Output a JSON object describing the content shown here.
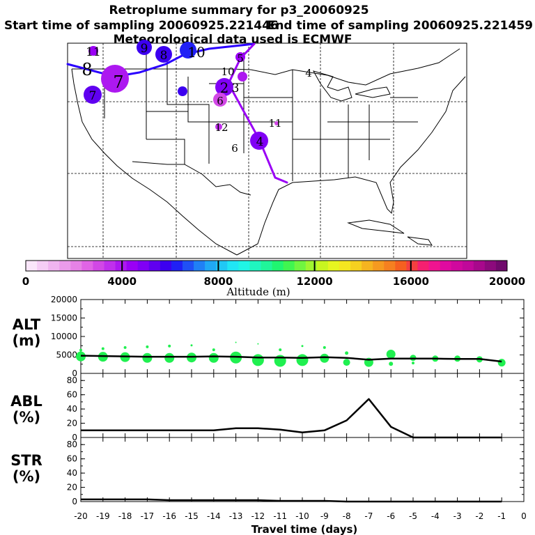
{
  "header": {
    "title": "Retroplume summary for p3_20060925",
    "start_label": "Start time of sampling 20060925.221446",
    "end_label": "End time of sampling 20060925.221459",
    "met_label": "Meteorological data used is ECMWF"
  },
  "colorbar": {
    "label": "Altitude (m)",
    "tick_labels": [
      "0",
      "4000",
      "8000",
      "12000",
      "16000",
      "20000"
    ],
    "min": 0,
    "max": 20000,
    "colors": [
      "#fae6fa",
      "#f5cdf5",
      "#f0b4f0",
      "#eb9beb",
      "#e682e6",
      "#e064e6",
      "#d248e6",
      "#c030ec",
      "#ad18f0",
      "#9a00f5",
      "#8000f5",
      "#6000f0",
      "#3c00f0",
      "#2020f5",
      "#2050f5",
      "#2080f5",
      "#20a8f5",
      "#20c8f5",
      "#20e6f5",
      "#20f5e6",
      "#20f5c0",
      "#20f59a",
      "#20f570",
      "#40f550",
      "#70f540",
      "#a0f530",
      "#c8f520",
      "#e6f520",
      "#f5e620",
      "#f5d020",
      "#f5b420",
      "#f59a20",
      "#f58020",
      "#f56020",
      "#f54040",
      "#f52070",
      "#f01490",
      "#e00aa0",
      "#d0089e",
      "#c0089a",
      "#a8088c",
      "#8c0a7c",
      "#700a6c"
    ]
  },
  "map": {
    "labels": [
      "11",
      "9",
      "8",
      "10",
      "8",
      "7",
      "7",
      "5",
      "3",
      "2",
      "10",
      "6",
      "4",
      "12",
      "11",
      "4",
      "6"
    ],
    "track_color": "#2a00ff",
    "track_color2": "#9a00f5"
  },
  "chart_data": [
    {
      "type": "scatter",
      "panel": "ALT",
      "label_line1": "ALT",
      "label_line2": "(m)",
      "ylim": [
        0,
        20000
      ],
      "yticks": [
        "0",
        "5000",
        "10000",
        "15000",
        "20000"
      ],
      "x": [
        -20,
        -19,
        -18,
        -17,
        -16,
        -15,
        -14,
        -13,
        -12,
        -11,
        -10,
        -9,
        -8,
        -7,
        -6,
        -5,
        -4,
        -3,
        -2,
        -1
      ],
      "line_values": [
        4800,
        4700,
        4600,
        4500,
        4500,
        4500,
        4600,
        4500,
        4300,
        4300,
        4200,
        4400,
        4200,
        3700,
        4000,
        4000,
        4000,
        3900,
        3900,
        3200
      ],
      "marker_color": "#20f050",
      "markers": [
        {
          "x": -20,
          "y": 4600,
          "s": 7
        },
        {
          "x": -20,
          "y": 6300,
          "s": 2
        },
        {
          "x": -19,
          "y": 4500,
          "s": 7
        },
        {
          "x": -19,
          "y": 6700,
          "s": 2
        },
        {
          "x": -18,
          "y": 4400,
          "s": 7
        },
        {
          "x": -18,
          "y": 7000,
          "s": 2
        },
        {
          "x": -17,
          "y": 4200,
          "s": 7
        },
        {
          "x": -17,
          "y": 7200,
          "s": 2
        },
        {
          "x": -16,
          "y": 4200,
          "s": 7
        },
        {
          "x": -16,
          "y": 7400,
          "s": 2
        },
        {
          "x": -15,
          "y": 4300,
          "s": 7
        },
        {
          "x": -15,
          "y": 7600,
          "s": 1.5
        },
        {
          "x": -14,
          "y": 4200,
          "s": 7
        },
        {
          "x": -14,
          "y": 6400,
          "s": 2
        },
        {
          "x": -13,
          "y": 4300,
          "s": 8.5
        },
        {
          "x": -13,
          "y": 8400,
          "s": 1
        },
        {
          "x": -12,
          "y": 3600,
          "s": 8.5
        },
        {
          "x": -12,
          "y": 8000,
          "s": 1
        },
        {
          "x": -11,
          "y": 3400,
          "s": 8.5
        },
        {
          "x": -11,
          "y": 6400,
          "s": 2
        },
        {
          "x": -10,
          "y": 3600,
          "s": 8.5
        },
        {
          "x": -10,
          "y": 7400,
          "s": 1.5
        },
        {
          "x": -9,
          "y": 4100,
          "s": 6.5
        },
        {
          "x": -9,
          "y": 7000,
          "s": 2
        },
        {
          "x": -8,
          "y": 3000,
          "s": 5
        },
        {
          "x": -8,
          "y": 5500,
          "s": 2.5
        },
        {
          "x": -7,
          "y": 3000,
          "s": 6.5
        },
        {
          "x": -6,
          "y": 5200,
          "s": 6.5
        },
        {
          "x": -6,
          "y": 2600,
          "s": 3
        },
        {
          "x": -5,
          "y": 4200,
          "s": 4.5
        },
        {
          "x": -5,
          "y": 2800,
          "s": 2
        },
        {
          "x": -4,
          "y": 4000,
          "s": 4.5
        },
        {
          "x": -3,
          "y": 4000,
          "s": 4.5
        },
        {
          "x": -2,
          "y": 3800,
          "s": 4.5
        },
        {
          "x": -1,
          "y": 2900,
          "s": 5.5
        }
      ]
    },
    {
      "type": "line",
      "panel": "ABL",
      "label_line1": "ABL",
      "label_line2": "(%)",
      "ylim": [
        0,
        90
      ],
      "yticks": [
        "0",
        "20",
        "40",
        "60",
        "80"
      ],
      "x": [
        -20,
        -19,
        -18,
        -17,
        -16,
        -15,
        -14,
        -13,
        -12,
        -11,
        -10,
        -9,
        -8,
        -7,
        -6,
        -5,
        -4,
        -3,
        -2,
        -1
      ],
      "values": [
        10,
        10,
        10,
        10,
        10,
        10,
        10,
        13,
        13,
        11,
        7,
        10,
        24,
        54,
        15,
        0,
        0,
        0,
        0,
        0
      ]
    },
    {
      "type": "line",
      "panel": "STR",
      "label_line1": "STR",
      "label_line2": "(%)",
      "ylim": [
        0,
        90
      ],
      "yticks": [
        "0",
        "20",
        "40",
        "60",
        "80"
      ],
      "x": [
        -20,
        -19,
        -18,
        -17,
        -16,
        -15,
        -14,
        -13,
        -12,
        -11,
        -10,
        -9,
        -8,
        -7,
        -6,
        -5,
        -4,
        -3,
        -2,
        -1
      ],
      "values": [
        3,
        3,
        3,
        3,
        2,
        2,
        2,
        2,
        2,
        1,
        1,
        1,
        0,
        0,
        0,
        0,
        0,
        0,
        0,
        0
      ]
    }
  ],
  "xaxis": {
    "label": "Travel time (days)",
    "xlim": [
      -20,
      0
    ],
    "tick_labels": [
      "-20",
      "-19",
      "-18",
      "-17",
      "-16",
      "-15",
      "-14",
      "-13",
      "-12",
      "-11",
      "-10",
      "-9",
      "-8",
      "-7",
      "-6",
      "-5",
      "-4",
      "-3",
      "-2",
      "-1",
      "0"
    ]
  }
}
